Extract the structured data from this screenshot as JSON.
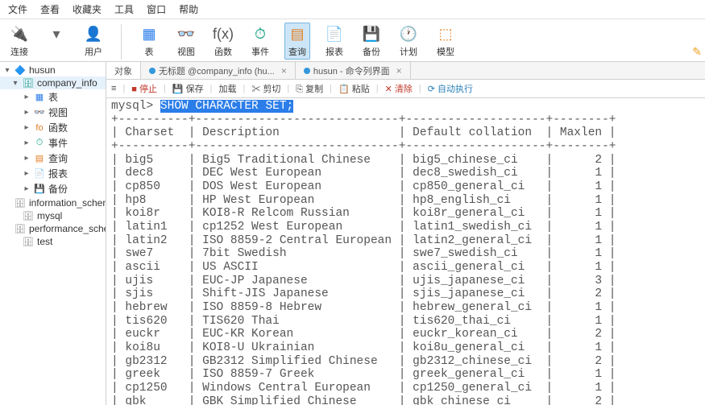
{
  "menubar": [
    "文件",
    "查看",
    "收藏夹",
    "工具",
    "窗口",
    "帮助"
  ],
  "ribbon": {
    "group1": [
      {
        "label": "连接",
        "icon": "🔌",
        "color": "#333"
      },
      {
        "label": "",
        "icon": "▾",
        "color": "#666"
      },
      {
        "label": "用户",
        "icon": "👤",
        "color": "#2b7de9"
      }
    ],
    "group2": [
      {
        "label": "表",
        "icon": "▦",
        "color": "#2b7de9"
      },
      {
        "label": "视图",
        "icon": "👓",
        "color": "#16a085"
      },
      {
        "label": "函数",
        "icon": "f(x)",
        "color": "#555"
      },
      {
        "label": "事件",
        "icon": "⏱",
        "color": "#16a085"
      },
      {
        "label": "查询",
        "icon": "▤",
        "color": "#e67e22",
        "active": true
      },
      {
        "label": "报表",
        "icon": "📄",
        "color": "#555"
      },
      {
        "label": "备份",
        "icon": "💾",
        "color": "#16a085"
      },
      {
        "label": "计划",
        "icon": "🕐",
        "color": "#2b7de9"
      },
      {
        "label": "模型",
        "icon": "⬚",
        "color": "#e67e22"
      }
    ]
  },
  "tree": [
    {
      "label": "husun",
      "depth": 0,
      "expand": "▾",
      "icon": "🔷",
      "iconColor": "#3498db"
    },
    {
      "label": "company_info",
      "depth": 1,
      "expand": "▾",
      "icon": "🗄",
      "iconColor": "#16a085",
      "selected": true
    },
    {
      "label": "表",
      "depth": 2,
      "expand": "▸",
      "icon": "▦",
      "iconColor": "#2b7de9"
    },
    {
      "label": "视图",
      "depth": 2,
      "expand": "▸",
      "icon": "👓",
      "iconColor": "#16a085"
    },
    {
      "label": "函数",
      "depth": 2,
      "expand": "▸",
      "icon": "fo",
      "iconColor": "#e67e22"
    },
    {
      "label": "事件",
      "depth": 2,
      "expand": "▸",
      "icon": "⏱",
      "iconColor": "#16a085"
    },
    {
      "label": "查询",
      "depth": 2,
      "expand": "▸",
      "icon": "▤",
      "iconColor": "#e67e22"
    },
    {
      "label": "报表",
      "depth": 2,
      "expand": "▸",
      "icon": "📄",
      "iconColor": "#555"
    },
    {
      "label": "备份",
      "depth": 2,
      "expand": "▸",
      "icon": "💾",
      "iconColor": "#16a085"
    },
    {
      "label": "information_schema",
      "depth": 1,
      "expand": "",
      "icon": "🗄",
      "iconColor": "#888"
    },
    {
      "label": "mysql",
      "depth": 1,
      "expand": "",
      "icon": "🗄",
      "iconColor": "#888"
    },
    {
      "label": "performance_schema",
      "depth": 1,
      "expand": "",
      "icon": "🗄",
      "iconColor": "#888"
    },
    {
      "label": "test",
      "depth": 1,
      "expand": "",
      "icon": "🗄",
      "iconColor": "#888"
    }
  ],
  "tabs": [
    {
      "label": "对象",
      "active": true,
      "dotColor": ""
    },
    {
      "label": "无标题 @company_info (hu...",
      "active": false,
      "dotColor": "#3498db",
      "closable": true
    },
    {
      "label": "husun - 命令列界面",
      "active": false,
      "dotColor": "#3498db",
      "closable": true
    }
  ],
  "toolbar2": [
    {
      "icon": "≡",
      "label": ""
    },
    {
      "icon": "■",
      "label": "停止",
      "color": "#c0392b"
    },
    {
      "icon": "💾",
      "label": "保存"
    },
    {
      "icon": "",
      "label": "加载"
    },
    {
      "icon": "✂",
      "label": "剪切"
    },
    {
      "icon": "⎘",
      "label": "复制"
    },
    {
      "icon": "📋",
      "label": "粘贴"
    },
    {
      "icon": "✕",
      "label": "清除",
      "color": "#c0392b"
    },
    {
      "icon": "⟳",
      "label": "自动执行",
      "color": "#2980b9"
    }
  ],
  "terminal": {
    "prompt": "mysql> ",
    "command": "SHOW CHARACTER SET;",
    "columns": [
      "Charset",
      "Description",
      "Default collation",
      "Maxlen"
    ],
    "widths": [
      10,
      29,
      20,
      8
    ],
    "rows": [
      [
        "big5",
        "Big5 Traditional Chinese",
        "big5_chinese_ci",
        "2"
      ],
      [
        "dec8",
        "DEC West European",
        "dec8_swedish_ci",
        "1"
      ],
      [
        "cp850",
        "DOS West European",
        "cp850_general_ci",
        "1"
      ],
      [
        "hp8",
        "HP West European",
        "hp8_english_ci",
        "1"
      ],
      [
        "koi8r",
        "KOI8-R Relcom Russian",
        "koi8r_general_ci",
        "1"
      ],
      [
        "latin1",
        "cp1252 West European",
        "latin1_swedish_ci",
        "1"
      ],
      [
        "latin2",
        "ISO 8859-2 Central European",
        "latin2_general_ci",
        "1"
      ],
      [
        "swe7",
        "7bit Swedish",
        "swe7_swedish_ci",
        "1"
      ],
      [
        "ascii",
        "US ASCII",
        "ascii_general_ci",
        "1"
      ],
      [
        "ujis",
        "EUC-JP Japanese",
        "ujis_japanese_ci",
        "3"
      ],
      [
        "sjis",
        "Shift-JIS Japanese",
        "sjis_japanese_ci",
        "2"
      ],
      [
        "hebrew",
        "ISO 8859-8 Hebrew",
        "hebrew_general_ci",
        "1"
      ],
      [
        "tis620",
        "TIS620 Thai",
        "tis620_thai_ci",
        "1"
      ],
      [
        "euckr",
        "EUC-KR Korean",
        "euckr_korean_ci",
        "2"
      ],
      [
        "koi8u",
        "KOI8-U Ukrainian",
        "koi8u_general_ci",
        "1"
      ],
      [
        "gb2312",
        "GB2312 Simplified Chinese",
        "gb2312_chinese_ci",
        "2"
      ],
      [
        "greek",
        "ISO 8859-7 Greek",
        "greek_general_ci",
        "1"
      ],
      [
        "cp1250",
        "Windows Central European",
        "cp1250_general_ci",
        "1"
      ],
      [
        "gbk",
        "GBK Simplified Chinese",
        "gbk_chinese_ci",
        "2"
      ]
    ]
  }
}
